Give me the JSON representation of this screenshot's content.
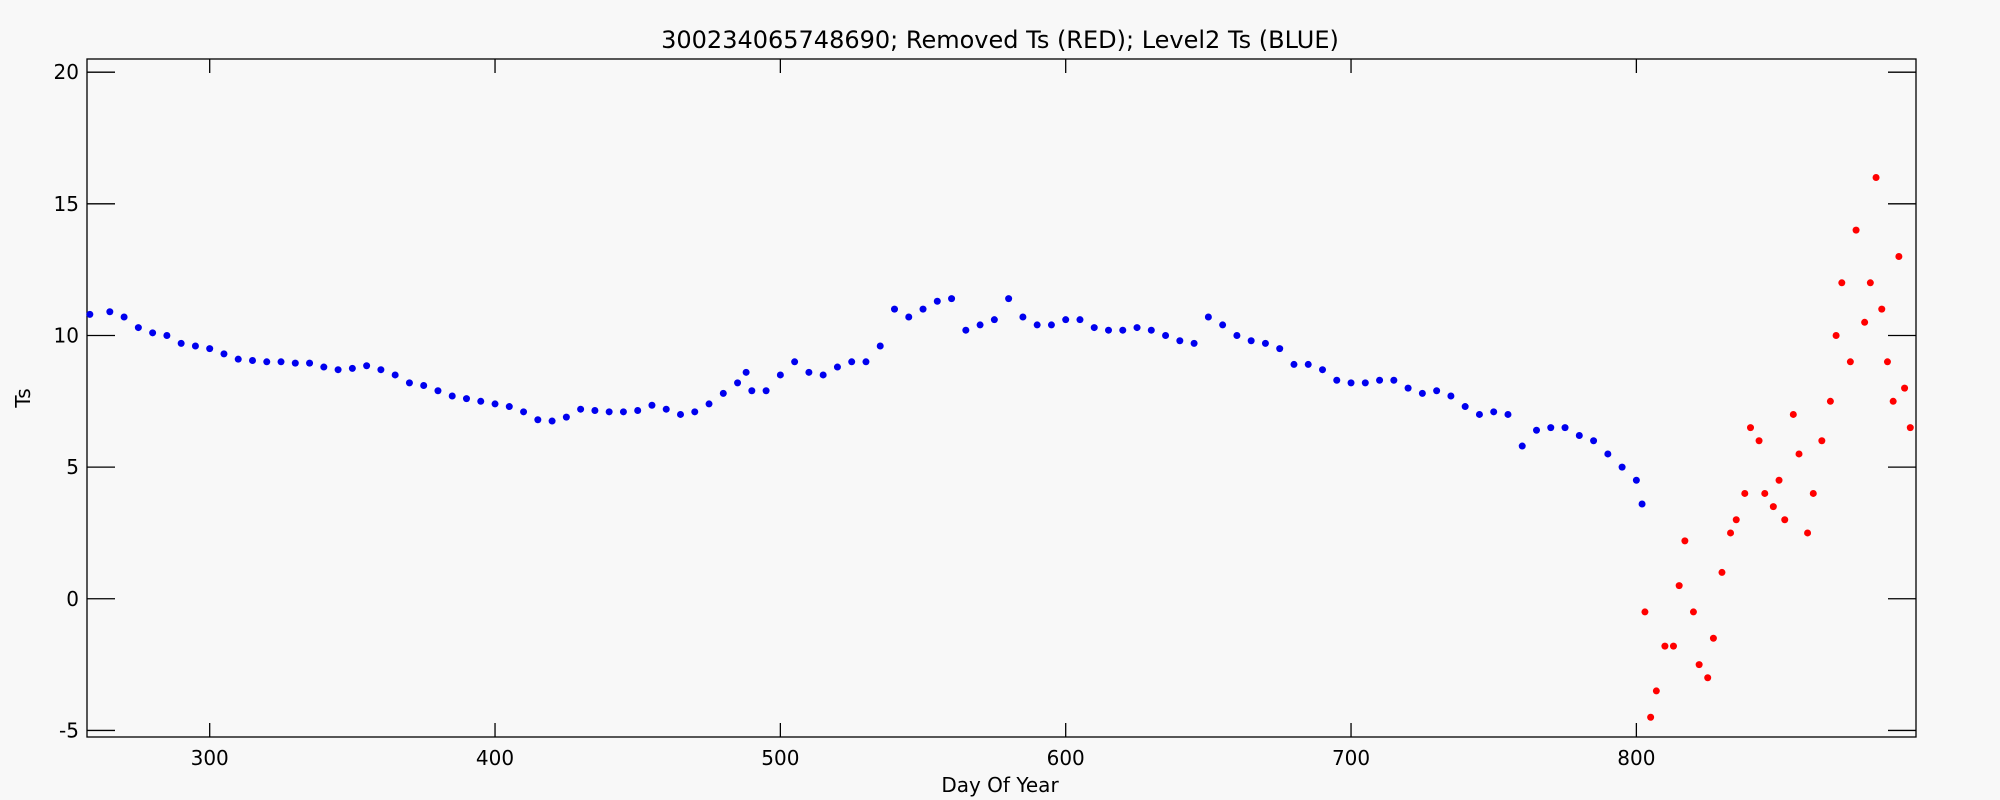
{
  "chart_data": {
    "type": "scatter",
    "title": "300234065748690; Removed Ts (RED); Level2 Ts (BLUE)",
    "x_label": "Day Of Year",
    "y_label": "Ts",
    "xlim": [
      257,
      898
    ],
    "ylim": [
      -5.25,
      20.5
    ],
    "xticks": [
      300,
      400,
      500,
      600,
      700,
      800
    ],
    "yticks": [
      -5,
      0,
      5,
      10,
      15,
      20
    ],
    "series": [
      {
        "color": "#0000ee",
        "x": [
          258,
          265,
          270,
          275,
          280,
          285,
          290,
          295,
          300,
          305,
          310,
          315,
          320,
          325,
          330,
          335,
          340,
          345,
          350,
          355,
          360,
          365,
          370,
          375,
          380,
          385,
          390,
          395,
          400,
          405,
          410,
          415,
          420,
          425,
          430,
          435,
          440,
          445,
          450,
          455,
          460,
          465,
          470,
          475,
          480,
          485,
          488,
          490,
          495,
          500,
          505,
          510,
          515,
          520,
          525,
          530,
          535,
          540,
          545,
          550,
          555,
          560,
          565,
          570,
          575,
          580,
          585,
          590,
          595,
          600,
          605,
          610,
          615,
          620,
          625,
          630,
          635,
          640,
          645,
          650,
          655,
          660,
          665,
          670,
          675,
          680,
          685,
          690,
          695,
          700,
          705,
          710,
          715,
          720,
          725,
          730,
          735,
          740,
          745,
          750,
          755,
          760,
          765,
          770,
          775,
          780,
          785,
          790,
          795,
          800,
          802
        ],
        "values": [
          10.8,
          10.9,
          10.7,
          10.3,
          10.1,
          10.0,
          9.7,
          9.6,
          9.5,
          9.3,
          9.1,
          9.05,
          9.0,
          9.0,
          8.95,
          8.95,
          8.8,
          8.7,
          8.75,
          8.85,
          8.7,
          8.5,
          8.2,
          8.1,
          7.9,
          7.7,
          7.6,
          7.5,
          7.4,
          7.3,
          7.1,
          6.8,
          6.75,
          6.9,
          7.2,
          7.15,
          7.1,
          7.1,
          7.15,
          7.35,
          7.2,
          7.0,
          7.1,
          7.4,
          7.8,
          8.2,
          8.6,
          7.9,
          7.9,
          8.5,
          9.0,
          8.6,
          8.5,
          8.8,
          9.0,
          9.0,
          9.6,
          11.0,
          10.7,
          11.0,
          11.3,
          11.4,
          10.2,
          10.4,
          10.6,
          11.4,
          10.7,
          10.4,
          10.4,
          10.6,
          10.6,
          10.3,
          10.2,
          10.2,
          10.3,
          10.2,
          10.0,
          9.8,
          9.7,
          10.7,
          10.4,
          10.0,
          9.8,
          9.7,
          9.5,
          8.9,
          8.9,
          8.7,
          8.3,
          8.2,
          8.2,
          8.3,
          8.3,
          8.0,
          7.8,
          7.9,
          7.7,
          7.3,
          7.0,
          7.1,
          7.0,
          5.8,
          6.4,
          6.5,
          6.5,
          6.2,
          6.0,
          5.5,
          5.0,
          4.5,
          3.6
        ]
      },
      {
        "color": "#ff0000",
        "x": [
          803,
          805,
          807,
          810,
          813,
          815,
          817,
          820,
          822,
          825,
          827,
          830,
          833,
          835,
          838,
          840,
          843,
          845,
          848,
          850,
          852,
          855,
          857,
          860,
          862,
          865,
          868,
          870,
          872,
          875,
          877,
          880,
          882,
          884,
          886,
          888,
          890,
          892,
          894,
          896
        ],
        "values": [
          -0.5,
          -4.5,
          -3.5,
          -1.8,
          -1.8,
          0.5,
          2.2,
          -0.5,
          -2.5,
          -3.0,
          -1.5,
          1.0,
          2.5,
          3.0,
          4.0,
          6.5,
          6.0,
          4.0,
          3.5,
          4.5,
          3.0,
          7.0,
          5.5,
          2.5,
          4.0,
          6.0,
          7.5,
          10.0,
          12.0,
          9.0,
          14.0,
          10.5,
          12.0,
          16.0,
          11.0,
          9.0,
          7.5,
          13.0,
          8.0,
          6.5
        ]
      }
    ]
  }
}
